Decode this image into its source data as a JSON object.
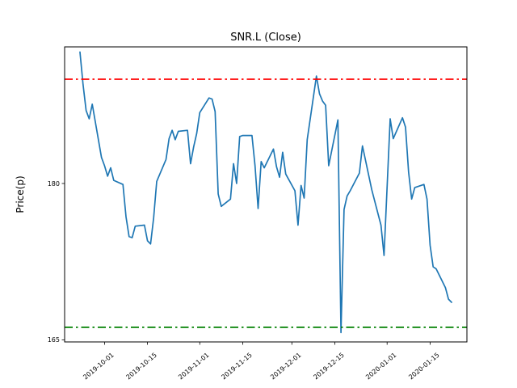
{
  "figure": {
    "background_color": "#ffffff",
    "frame_color": "#000000"
  },
  "chart_data": {
    "type": "line",
    "title": "SNR.L (Close)",
    "xlabel": "",
    "ylabel": "Price(p)",
    "grid": false,
    "legend_position": "none",
    "xlim": [
      "2019-09-18",
      "2020-01-27"
    ],
    "ylim": [
      164.8,
      193.1
    ],
    "y_ticks": [
      165,
      180
    ],
    "x_tick_labels": [
      "2019-10-01",
      "2019-10-15",
      "2019-11-01",
      "2019-11-15",
      "2019-12-01",
      "2019-12-15",
      "2020-01-01",
      "2020-01-15"
    ],
    "series": [
      {
        "name": "close-price",
        "color": "#1f77b4",
        "line_style": "solid",
        "line_width": 1.7,
        "points": [
          [
            "2019-09-23",
            192.6
          ],
          [
            "2019-09-24",
            189.5
          ],
          [
            "2019-09-25",
            187.0
          ],
          [
            "2019-09-26",
            186.2
          ],
          [
            "2019-09-27",
            187.6
          ],
          [
            "2019-09-30",
            182.5
          ],
          [
            "2019-10-01",
            181.7
          ],
          [
            "2019-10-02",
            180.7
          ],
          [
            "2019-10-03",
            181.5
          ],
          [
            "2019-10-04",
            180.3
          ],
          [
            "2019-10-07",
            179.9
          ],
          [
            "2019-10-08",
            176.8
          ],
          [
            "2019-10-09",
            174.9
          ],
          [
            "2019-10-10",
            174.8
          ],
          [
            "2019-10-11",
            175.9
          ],
          [
            "2019-10-14",
            176.0
          ],
          [
            "2019-10-15",
            174.5
          ],
          [
            "2019-10-16",
            174.2
          ],
          [
            "2019-10-17",
            176.7
          ],
          [
            "2019-10-18",
            180.2
          ],
          [
            "2019-10-21",
            182.3
          ],
          [
            "2019-10-22",
            184.3
          ],
          [
            "2019-10-23",
            185.1
          ],
          [
            "2019-10-24",
            184.2
          ],
          [
            "2019-10-25",
            185.0
          ],
          [
            "2019-10-28",
            185.1
          ],
          [
            "2019-10-29",
            181.9
          ],
          [
            "2019-10-30",
            183.5
          ],
          [
            "2019-10-31",
            184.8
          ],
          [
            "2019-11-01",
            186.8
          ],
          [
            "2019-11-04",
            188.2
          ],
          [
            "2019-11-05",
            188.1
          ],
          [
            "2019-11-06",
            186.9
          ],
          [
            "2019-11-07",
            179.0
          ],
          [
            "2019-11-08",
            177.8
          ],
          [
            "2019-11-11",
            178.5
          ],
          [
            "2019-11-12",
            181.9
          ],
          [
            "2019-11-13",
            180.0
          ],
          [
            "2019-11-14",
            184.5
          ],
          [
            "2019-11-15",
            184.6
          ],
          [
            "2019-11-18",
            184.6
          ],
          [
            "2019-11-19",
            181.7
          ],
          [
            "2019-11-20",
            177.6
          ],
          [
            "2019-11-21",
            182.1
          ],
          [
            "2019-11-22",
            181.5
          ],
          [
            "2019-11-25",
            183.3
          ],
          [
            "2019-11-26",
            181.6
          ],
          [
            "2019-11-27",
            180.6
          ],
          [
            "2019-11-28",
            183.0
          ],
          [
            "2019-11-29",
            180.9
          ],
          [
            "2019-12-02",
            179.3
          ],
          [
            "2019-12-03",
            176.0
          ],
          [
            "2019-12-04",
            179.8
          ],
          [
            "2019-12-05",
            178.6
          ],
          [
            "2019-12-06",
            184.2
          ],
          [
            "2019-12-09",
            190.3
          ],
          [
            "2019-12-10",
            188.6
          ],
          [
            "2019-12-11",
            187.9
          ],
          [
            "2019-12-12",
            187.5
          ],
          [
            "2019-12-13",
            181.7
          ],
          [
            "2019-12-16",
            186.1
          ],
          [
            "2019-12-17",
            165.7
          ],
          [
            "2019-12-18",
            177.5
          ],
          [
            "2019-12-19",
            178.8
          ],
          [
            "2019-12-20",
            179.3
          ],
          [
            "2019-12-23",
            181.0
          ],
          [
            "2019-12-24",
            183.6
          ],
          [
            "2019-12-27",
            179.4
          ],
          [
            "2019-12-30",
            176.0
          ],
          [
            "2019-12-31",
            173.1
          ],
          [
            "2020-01-02",
            186.2
          ],
          [
            "2020-01-03",
            184.3
          ],
          [
            "2020-01-06",
            186.3
          ],
          [
            "2020-01-07",
            185.4
          ],
          [
            "2020-01-08",
            181.1
          ],
          [
            "2020-01-09",
            178.5
          ],
          [
            "2020-01-10",
            179.6
          ],
          [
            "2020-01-13",
            179.9
          ],
          [
            "2020-01-14",
            178.5
          ],
          [
            "2020-01-15",
            174.1
          ],
          [
            "2020-01-16",
            172.0
          ],
          [
            "2020-01-17",
            171.8
          ],
          [
            "2020-01-20",
            170.0
          ],
          [
            "2020-01-21",
            168.9
          ],
          [
            "2020-01-22",
            168.6
          ]
        ]
      }
    ],
    "hlines": [
      {
        "name": "upper-threshold",
        "value": 190.0,
        "color": "#ff0000",
        "line_style": "dash-dot",
        "line_width": 1.8
      },
      {
        "name": "lower-threshold",
        "value": 166.2,
        "color": "#008000",
        "line_style": "dash-dot",
        "line_width": 1.8
      }
    ]
  }
}
